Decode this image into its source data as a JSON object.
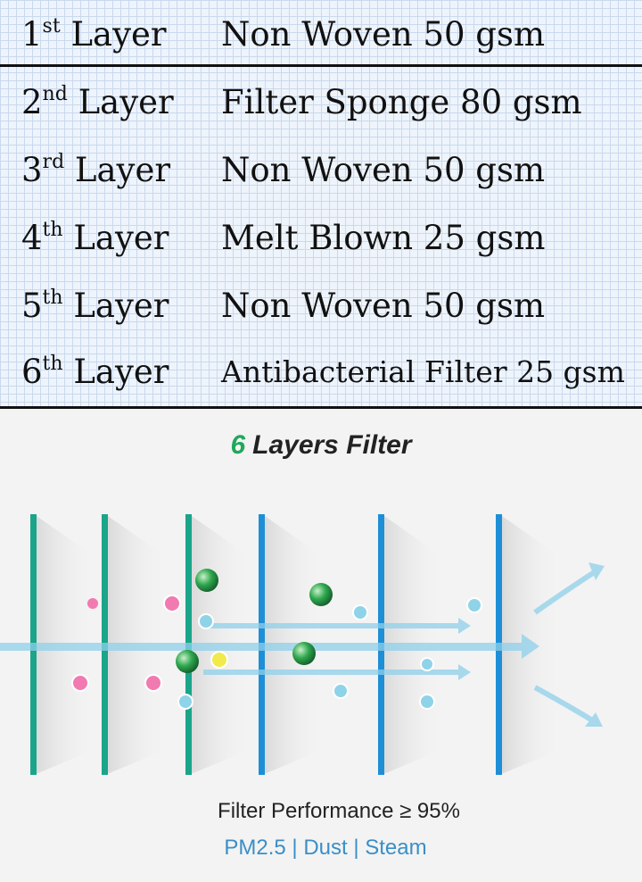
{
  "table": {
    "header": {
      "layer_num": "1",
      "layer_sup": "st",
      "layer_word": "Layer",
      "material": "Non Woven 50 gsm"
    },
    "rows": [
      {
        "layer_num": "2",
        "layer_sup": "nd",
        "layer_word": "Layer",
        "material": "Filter Sponge 80 gsm"
      },
      {
        "layer_num": "3",
        "layer_sup": "rd",
        "layer_word": "Layer",
        "material": "Non Woven 50 gsm"
      },
      {
        "layer_num": "4",
        "layer_sup": "th",
        "layer_word": "Layer",
        "material": "Melt Blown 25 gsm"
      },
      {
        "layer_num": "5",
        "layer_sup": "th",
        "layer_word": "Layer",
        "material": "Non Woven 50 gsm"
      },
      {
        "layer_num": "6",
        "layer_sup": "th",
        "layer_word": "Layer",
        "material": "Antibacterial Filter 25 gsm"
      }
    ]
  },
  "figure": {
    "title_number": "6",
    "title_text": "Layers Filter",
    "performance": "Filter Performance  ≥ 95%",
    "categories": "PM2.5 | Dust | Steam",
    "colors": {
      "green_layer": "#1aa58a",
      "blue_layer": "#1e8fd6",
      "arrow": "#7fc6e6",
      "particle_pink": "#f17ab0",
      "particle_green": "#2fa84f",
      "particle_cyan": "#8fd3e8",
      "particle_yellow": "#f2ea4a"
    }
  }
}
